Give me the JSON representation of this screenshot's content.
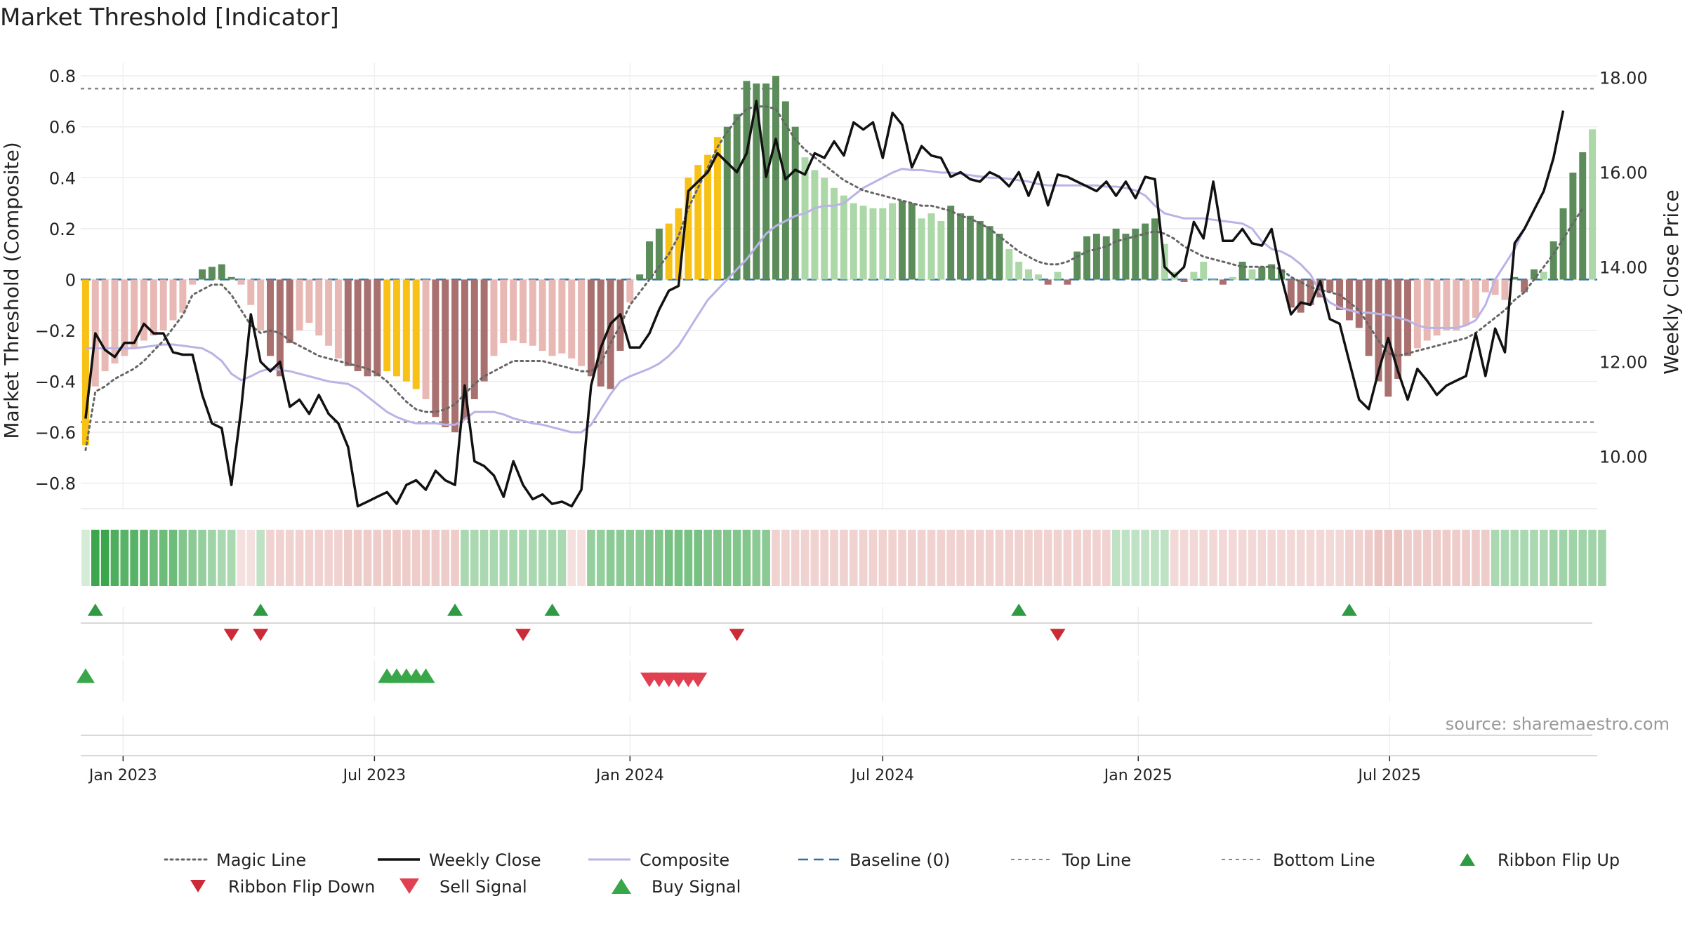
{
  "title": "Market Threshold [Indicator]",
  "source_note": "source: sharemaestro.com",
  "colors": {
    "dark_green": "#5b8c5a",
    "light_green": "#acd8a8",
    "dark_red": "#a8706e",
    "light_red": "#e8b9b4",
    "gold": "#f7c117",
    "weekly_close": "#111111",
    "composite": "#b9b3e6",
    "magic_line": "#666666",
    "baseline": "#2b6fa8",
    "ref_line": "#888888",
    "signal_green": "#2e9a44",
    "signal_red": "#cc2a36",
    "ribbon_green": "#3ca64c",
    "ribbon_red": "#e7b4b1"
  },
  "chart_data": {
    "type": "bar",
    "title": "Market Threshold [Indicator]",
    "ylabel": "Market Threshold (Composite)",
    "ylabel_right": "Weekly Close Price",
    "ylim": [
      -0.9,
      0.85
    ],
    "ylim_right": [
      8.9,
      18.3
    ],
    "yticks": [
      0.8,
      0.6,
      0.4,
      0.2,
      0.0,
      -0.2,
      -0.4,
      -0.6,
      -0.8
    ],
    "ytick_labels": [
      "0.8",
      "0.6",
      "0.4",
      "0.2",
      "0",
      "−0.2",
      "−0.4",
      "−0.6",
      "−0.8"
    ],
    "yticks_right": [
      18.0,
      16.0,
      14.0,
      12.0,
      10.0
    ],
    "ytick_labels_right": [
      "18.00",
      "16.00",
      "14.00",
      "12.00",
      "10.00"
    ],
    "x_start": "2022-12-05",
    "x_step_days": 7,
    "x_ticks": [
      {
        "date": "2023-01-01",
        "label": "Jan 2023"
      },
      {
        "date": "2023-07-01",
        "label": "Jul 2023"
      },
      {
        "date": "2024-01-01",
        "label": "Jan 2024"
      },
      {
        "date": "2024-07-01",
        "label": "Jul 2024"
      },
      {
        "date": "2025-01-01",
        "label": "Jan 2025"
      },
      {
        "date": "2025-07-01",
        "label": "Jul 2025"
      }
    ],
    "top_line": 0.75,
    "bottom_line": -0.56,
    "grid": true,
    "legend_position": "bottom",
    "composite": [
      -0.65,
      -0.42,
      -0.36,
      -0.33,
      -0.3,
      -0.27,
      -0.24,
      -0.22,
      -0.2,
      -0.16,
      -0.13,
      -0.02,
      0.04,
      0.05,
      0.06,
      0.01,
      -0.02,
      -0.1,
      -0.2,
      -0.3,
      -0.38,
      -0.25,
      -0.2,
      -0.17,
      -0.22,
      -0.26,
      -0.31,
      -0.34,
      -0.36,
      -0.38,
      -0.38,
      -0.36,
      -0.38,
      -0.4,
      -0.43,
      -0.47,
      -0.54,
      -0.58,
      -0.6,
      -0.55,
      -0.47,
      -0.4,
      -0.3,
      -0.25,
      -0.24,
      -0.25,
      -0.26,
      -0.28,
      -0.3,
      -0.29,
      -0.31,
      -0.34,
      -0.38,
      -0.42,
      -0.43,
      -0.28,
      -0.09,
      0.02,
      0.15,
      0.2,
      0.22,
      0.28,
      0.4,
      0.45,
      0.49,
      0.56,
      0.6,
      0.65,
      0.78,
      0.77,
      0.77,
      0.8,
      0.7,
      0.6,
      0.48,
      0.43,
      0.4,
      0.36,
      0.33,
      0.3,
      0.29,
      0.28,
      0.28,
      0.3,
      0.31,
      0.3,
      0.24,
      0.26,
      0.23,
      0.29,
      0.26,
      0.25,
      0.23,
      0.21,
      0.18,
      0.12,
      0.07,
      0.04,
      0.02,
      -0.02,
      0.03,
      -0.02,
      0.11,
      0.17,
      0.18,
      0.17,
      0.2,
      0.18,
      0.2,
      0.22,
      0.24,
      0.14,
      0.03,
      -0.01,
      0.03,
      0.07,
      0.0,
      -0.02,
      0.01,
      0.07,
      0.04,
      0.05,
      0.06,
      0.04,
      -0.11,
      -0.13,
      -0.1,
      -0.07,
      -0.05,
      -0.12,
      -0.16,
      -0.19,
      -0.3,
      -0.4,
      -0.46,
      -0.39,
      -0.3,
      -0.27,
      -0.24,
      -0.22,
      -0.2,
      -0.2,
      -0.18,
      -0.15,
      -0.05,
      -0.06,
      -0.08,
      0.01,
      -0.05,
      0.04,
      0.03,
      0.15,
      0.28,
      0.42,
      0.5,
      0.59
    ],
    "weekly_close": [
      10.8,
      12.6,
      12.25,
      12.1,
      12.4,
      12.4,
      12.8,
      12.6,
      12.6,
      12.2,
      12.15,
      12.15,
      11.3,
      10.7,
      10.6,
      9.4,
      11.0,
      13.0,
      12.0,
      11.8,
      12.0,
      11.05,
      11.2,
      10.9,
      11.3,
      10.9,
      10.7,
      10.2,
      8.95,
      9.05,
      9.15,
      9.25,
      9.0,
      9.4,
      9.5,
      9.3,
      9.7,
      9.5,
      9.4,
      11.5,
      9.9,
      9.8,
      9.6,
      9.15,
      9.9,
      9.4,
      9.1,
      9.2,
      9.0,
      9.05,
      8.95,
      9.3,
      11.5,
      12.3,
      12.8,
      13.0,
      12.3,
      12.3,
      12.6,
      13.1,
      13.5,
      13.6,
      15.6,
      15.8,
      16.0,
      16.4,
      16.2,
      16.0,
      16.4,
      17.5,
      15.9,
      16.7,
      15.85,
      16.05,
      15.95,
      16.4,
      16.3,
      16.65,
      16.35,
      17.05,
      16.9,
      17.05,
      16.3,
      17.25,
      17.0,
      16.1,
      16.55,
      16.35,
      16.3,
      15.9,
      16.0,
      15.85,
      15.8,
      16.0,
      15.9,
      15.7,
      16.0,
      15.5,
      16.0,
      15.3,
      15.95,
      15.9,
      15.8,
      15.7,
      15.6,
      15.8,
      15.5,
      15.8,
      15.45,
      15.9,
      15.85,
      14.0,
      13.8,
      14.0,
      14.95,
      14.6,
      15.8,
      14.55,
      14.55,
      14.8,
      14.5,
      14.45,
      14.8,
      13.8,
      13.0,
      13.25,
      13.2,
      13.7,
      12.9,
      12.8,
      12.0,
      11.2,
      11.0,
      11.8,
      12.5,
      11.8,
      11.2,
      11.85,
      11.6,
      11.3,
      11.5,
      11.6,
      11.7,
      12.6,
      11.7,
      12.7,
      12.2,
      14.5,
      14.8,
      15.2,
      15.6,
      16.3,
      17.3
    ],
    "composite_line": [
      -0.27,
      -0.27,
      -0.27,
      -0.27,
      -0.27,
      -0.27,
      -0.265,
      -0.26,
      -0.255,
      -0.255,
      -0.26,
      -0.265,
      -0.27,
      -0.29,
      -0.32,
      -0.37,
      -0.395,
      -0.38,
      -0.36,
      -0.35,
      -0.355,
      -0.36,
      -0.37,
      -0.38,
      -0.39,
      -0.4,
      -0.405,
      -0.41,
      -0.43,
      -0.46,
      -0.49,
      -0.52,
      -0.54,
      -0.555,
      -0.565,
      -0.565,
      -0.565,
      -0.57,
      -0.57,
      -0.55,
      -0.52,
      -0.52,
      -0.52,
      -0.53,
      -0.545,
      -0.555,
      -0.565,
      -0.57,
      -0.58,
      -0.59,
      -0.6,
      -0.6,
      -0.57,
      -0.51,
      -0.45,
      -0.4,
      -0.38,
      -0.365,
      -0.35,
      -0.33,
      -0.3,
      -0.26,
      -0.2,
      -0.14,
      -0.08,
      -0.04,
      0.0,
      0.04,
      0.08,
      0.13,
      0.18,
      0.21,
      0.23,
      0.25,
      0.26,
      0.28,
      0.29,
      0.29,
      0.3,
      0.33,
      0.36,
      0.38,
      0.4,
      0.42,
      0.435,
      0.43,
      0.43,
      0.425,
      0.42,
      0.42,
      0.415,
      0.41,
      0.405,
      0.4,
      0.4,
      0.395,
      0.39,
      0.385,
      0.375,
      0.37,
      0.37,
      0.37,
      0.37,
      0.37,
      0.37,
      0.365,
      0.365,
      0.36,
      0.35,
      0.33,
      0.29,
      0.26,
      0.25,
      0.24,
      0.24,
      0.24,
      0.235,
      0.23,
      0.225,
      0.22,
      0.2,
      0.15,
      0.12,
      0.11,
      0.09,
      0.06,
      0.02,
      -0.05,
      -0.09,
      -0.11,
      -0.12,
      -0.13,
      -0.13,
      -0.135,
      -0.14,
      -0.15,
      -0.16,
      -0.18,
      -0.19,
      -0.19,
      -0.19,
      -0.19,
      -0.18,
      -0.16,
      -0.1,
      0.0,
      0.06,
      0.12,
      0.2
    ],
    "magic_line": [
      -0.67,
      -0.44,
      -0.42,
      -0.39,
      -0.37,
      -0.35,
      -0.32,
      -0.28,
      -0.24,
      -0.19,
      -0.14,
      -0.06,
      -0.04,
      -0.02,
      -0.02,
      -0.06,
      -0.12,
      -0.18,
      -0.21,
      -0.2,
      -0.21,
      -0.24,
      -0.26,
      -0.28,
      -0.3,
      -0.31,
      -0.32,
      -0.33,
      -0.34,
      -0.35,
      -0.37,
      -0.4,
      -0.44,
      -0.48,
      -0.51,
      -0.52,
      -0.52,
      -0.51,
      -0.49,
      -0.45,
      -0.41,
      -0.38,
      -0.36,
      -0.34,
      -0.32,
      -0.32,
      -0.32,
      -0.32,
      -0.33,
      -0.34,
      -0.35,
      -0.36,
      -0.36,
      -0.33,
      -0.25,
      -0.18,
      -0.1,
      -0.05,
      0.0,
      0.05,
      0.1,
      0.17,
      0.28,
      0.36,
      0.44,
      0.52,
      0.58,
      0.63,
      0.67,
      0.68,
      0.68,
      0.67,
      0.61,
      0.55,
      0.51,
      0.48,
      0.45,
      0.42,
      0.39,
      0.37,
      0.35,
      0.34,
      0.33,
      0.32,
      0.31,
      0.3,
      0.29,
      0.29,
      0.28,
      0.27,
      0.25,
      0.24,
      0.22,
      0.2,
      0.17,
      0.14,
      0.11,
      0.09,
      0.07,
      0.06,
      0.06,
      0.07,
      0.09,
      0.11,
      0.12,
      0.13,
      0.15,
      0.16,
      0.17,
      0.18,
      0.19,
      0.18,
      0.16,
      0.13,
      0.11,
      0.09,
      0.08,
      0.07,
      0.06,
      0.05,
      0.05,
      0.05,
      0.05,
      0.04,
      0.01,
      -0.01,
      -0.03,
      -0.04,
      -0.05,
      -0.06,
      -0.09,
      -0.12,
      -0.18,
      -0.24,
      -0.29,
      -0.3,
      -0.29,
      -0.28,
      -0.27,
      -0.26,
      -0.25,
      -0.24,
      -0.23,
      -0.21,
      -0.18,
      -0.15,
      -0.12,
      -0.08,
      -0.05,
      0.0,
      0.05,
      0.1,
      0.16,
      0.22,
      0.28
    ],
    "ribbon": [
      0.1,
      0.9,
      0.85,
      0.75,
      0.7,
      0.7,
      0.65,
      0.6,
      0.6,
      0.6,
      0.5,
      0.45,
      0.4,
      0.35,
      0.3,
      0.3,
      -0.15,
      -0.15,
      0.2,
      -0.25,
      -0.25,
      -0.25,
      -0.25,
      -0.25,
      -0.25,
      -0.25,
      -0.25,
      -0.3,
      -0.3,
      -0.3,
      -0.3,
      -0.3,
      -0.3,
      -0.3,
      -0.3,
      -0.3,
      -0.3,
      -0.3,
      -0.3,
      0.3,
      0.3,
      0.3,
      0.3,
      0.3,
      0.3,
      0.3,
      0.3,
      0.3,
      0.3,
      0.3,
      -0.15,
      -0.15,
      0.4,
      0.4,
      0.45,
      0.45,
      0.45,
      0.45,
      0.5,
      0.5,
      0.55,
      0.55,
      0.55,
      0.55,
      0.5,
      0.5,
      0.5,
      0.5,
      0.5,
      0.45,
      0.45,
      -0.25,
      -0.25,
      -0.25,
      -0.25,
      -0.25,
      -0.25,
      -0.25,
      -0.25,
      -0.25,
      -0.25,
      -0.25,
      -0.25,
      -0.25,
      -0.25,
      -0.25,
      -0.25,
      -0.25,
      -0.25,
      -0.25,
      -0.25,
      -0.25,
      -0.25,
      -0.25,
      -0.25,
      -0.25,
      -0.25,
      -0.25,
      -0.25,
      -0.25,
      -0.25,
      -0.25,
      -0.25,
      -0.25,
      -0.25,
      -0.25,
      0.2,
      0.2,
      0.2,
      0.2,
      0.2,
      0.2,
      -0.2,
      -0.2,
      -0.2,
      -0.2,
      -0.2,
      -0.2,
      -0.2,
      -0.2,
      -0.2,
      -0.2,
      -0.2,
      -0.2,
      -0.2,
      -0.2,
      -0.2,
      -0.2,
      -0.2,
      -0.2,
      -0.25,
      -0.25,
      -0.3,
      -0.35,
      -0.35,
      -0.35,
      -0.3,
      -0.3,
      -0.3,
      -0.3,
      -0.3,
      -0.3,
      -0.3,
      -0.3,
      -0.3,
      0.3,
      0.3,
      0.3,
      0.3,
      0.3,
      0.3,
      0.35,
      0.35,
      0.35,
      0.35,
      0.35,
      0.35
    ],
    "ribbon_flip_up": [
      1,
      18,
      38,
      48,
      96,
      130
    ],
    "ribbon_flip_down": [
      15,
      18,
      45,
      67,
      100
    ],
    "buy_signal": [
      0,
      31,
      32,
      33,
      34,
      35
    ],
    "sell_signal": [
      58,
      59,
      60,
      61,
      62,
      63
    ],
    "gold_bars": [
      0,
      31,
      32,
      33,
      34,
      60,
      61,
      62,
      63,
      64,
      65
    ]
  },
  "legend": [
    {
      "label": "Magic Line",
      "kind": "dotted",
      "color": "#666666"
    },
    {
      "label": "Weekly Close",
      "kind": "solid",
      "color": "#111111"
    },
    {
      "label": "Composite",
      "kind": "solid",
      "color": "#b9b3e6"
    },
    {
      "label": "Baseline (0)",
      "kind": "dashed",
      "color": "#2b6fa8"
    },
    {
      "label": "Top Line",
      "kind": "dotted-thin",
      "color": "#888888"
    },
    {
      "label": "Bottom Line",
      "kind": "dotted-thin",
      "color": "#888888"
    },
    {
      "label": "Ribbon Flip Up",
      "kind": "tri-up",
      "color": "#2e9a44"
    },
    {
      "label": "Ribbon Flip Down",
      "kind": "tri-down",
      "color": "#cc2a36"
    },
    {
      "label": "Sell Signal",
      "kind": "tri-down-big",
      "color": "#e0404f"
    },
    {
      "label": "Buy Signal",
      "kind": "tri-up-big",
      "color": "#3aa64a"
    }
  ]
}
